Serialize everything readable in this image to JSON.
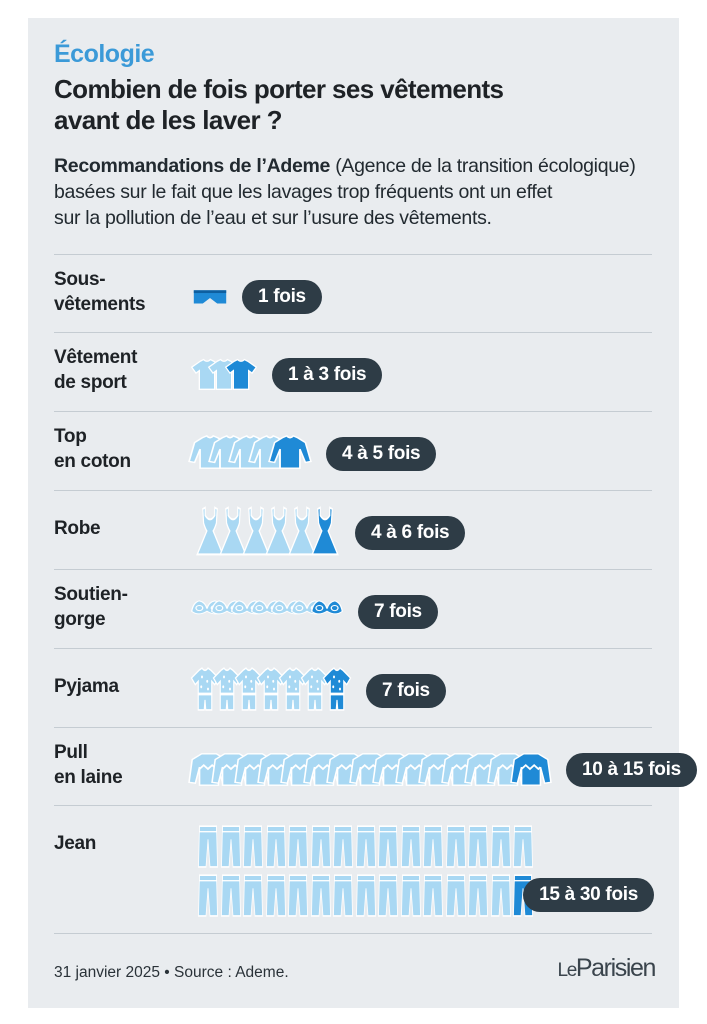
{
  "header": {
    "kicker": "Écologie",
    "title_lines": [
      "Combien de fois porter ses vêtements",
      "avant de les laver ?"
    ],
    "intro_bold": "Recommandations de l’Ademe",
    "intro_lines": [
      " (Agence de la transition écologique)",
      "basées sur le fait que les lavages trop fréquents ont un effet",
      "sur la pollution de l’eau et sur l’usure des vêtements."
    ]
  },
  "colors": {
    "light_blue": "#a9d8f3",
    "accent_blue": "#1f8ad6",
    "badge": "#2e3c46",
    "background": "#e9ecef"
  },
  "rows": [
    {
      "label_lines": [
        "Sous-",
        "vêtements"
      ],
      "icon": "underwear-icon",
      "count": 1,
      "badge": "1 fois"
    },
    {
      "label_lines": [
        "Vêtement",
        "de sport"
      ],
      "icon": "tshirt-icon",
      "count": 3,
      "badge": "1 à 3 fois"
    },
    {
      "label_lines": [
        "Top",
        "en coton"
      ],
      "icon": "long-sleeve-top-icon",
      "count": 5,
      "badge": "4 à 5 fois"
    },
    {
      "label_lines": [
        "Robe"
      ],
      "icon": "dress-icon",
      "count": 6,
      "badge": "4 à 6 fois"
    },
    {
      "label_lines": [
        "Soutien-",
        "gorge"
      ],
      "icon": "bra-icon",
      "count": 7,
      "badge": "7 fois"
    },
    {
      "label_lines": [
        "Pyjama"
      ],
      "icon": "pyjama-icon",
      "count": 7,
      "badge": "7 fois"
    },
    {
      "label_lines": [
        "Pull",
        "en laine"
      ],
      "icon": "sweater-icon",
      "count": 15,
      "badge": "10 à 15 fois"
    },
    {
      "label_lines": [
        "Jean"
      ],
      "icon": "jeans-icon",
      "count": 30,
      "badge": "15 à 30 fois"
    }
  ],
  "footer": {
    "source": "31 janvier 2025 • Source : Ademe.",
    "logo_le": "Le",
    "logo_name": "Parisien"
  }
}
